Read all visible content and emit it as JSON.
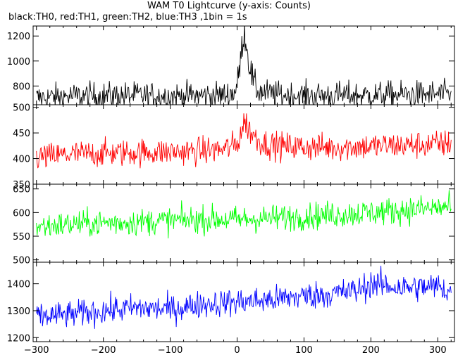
{
  "header": {
    "title": "WAM T0 Lightcurve (y-axis: Counts)",
    "subtitle": "black:TH0, red:TH1, green:TH2, blue:TH3 ,1bin = 1s"
  },
  "chart_data": {
    "type": "line",
    "xlim": [
      -305,
      325
    ],
    "x_ticks": [
      -300,
      -200,
      -100,
      0,
      100,
      200,
      300
    ],
    "grid": false,
    "panels": [
      {
        "series_name": "TH0",
        "color": "#000000",
        "ylim": [
          650,
          1280
        ],
        "y_ticks": [
          800,
          1000,
          1200
        ],
        "x": [
          -300,
          -250,
          -200,
          -150,
          -100,
          -50,
          -20,
          -5,
          0,
          5,
          10,
          13,
          16,
          20,
          25,
          30,
          40,
          60,
          100,
          150,
          200,
          250,
          300,
          320
        ],
        "y": [
          705,
          718,
          722,
          725,
          720,
          725,
          725,
          745,
          800,
          1000,
          1240,
          1180,
          1050,
          930,
          820,
          765,
          745,
          730,
          722,
          726,
          725,
          730,
          735,
          725
        ]
      },
      {
        "series_name": "TH1",
        "color": "#ff0000",
        "ylim": [
          350,
          505
        ],
        "y_ticks": [
          350,
          400,
          450,
          500
        ],
        "x": [
          -300,
          -250,
          -200,
          -150,
          -100,
          -50,
          -20,
          0,
          5,
          10,
          15,
          20,
          30,
          40,
          60,
          100,
          150,
          200,
          250,
          300,
          320
        ],
        "y": [
          402,
          408,
          410,
          412,
          413,
          415,
          418,
          428,
          448,
          470,
          465,
          452,
          438,
          430,
          425,
          422,
          422,
          424,
          426,
          428,
          430
        ]
      },
      {
        "series_name": "TH2",
        "color": "#00ff00",
        "ylim": [
          495,
          660
        ],
        "y_ticks": [
          500,
          550,
          600,
          650
        ],
        "x": [
          -300,
          -250,
          -200,
          -150,
          -100,
          -50,
          0,
          50,
          100,
          150,
          200,
          250,
          300,
          320
        ],
        "y": [
          570,
          575,
          578,
          580,
          583,
          586,
          585,
          588,
          592,
          596,
          600,
          605,
          610,
          612
        ]
      },
      {
        "series_name": "TH3",
        "color": "#0000ff",
        "ylim": [
          1185,
          1480
        ],
        "y_ticks": [
          1200,
          1300,
          1400
        ],
        "x": [
          -300,
          -250,
          -200,
          -150,
          -100,
          -50,
          0,
          50,
          100,
          150,
          180,
          200,
          250,
          300,
          320
        ],
        "y": [
          1278,
          1285,
          1300,
          1310,
          1305,
          1325,
          1332,
          1340,
          1355,
          1365,
          1375,
          1400,
          1385,
          1390,
          1370
        ]
      }
    ]
  }
}
